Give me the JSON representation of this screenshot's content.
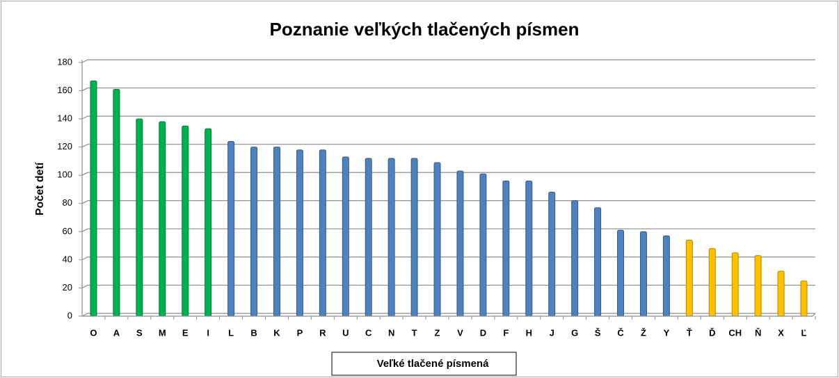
{
  "chart_data": {
    "type": "bar",
    "title": "Poznanie veľkých tlačených písmen",
    "ylabel": "Počet detí",
    "xlabel": "Veľké tlačené písmená",
    "categories": [
      "O",
      "A",
      "S",
      "M",
      "E",
      "I",
      "L",
      "B",
      "K",
      "P",
      "R",
      "U",
      "C",
      "N",
      "T",
      "Z",
      "V",
      "D",
      "F",
      "H",
      "J",
      "G",
      "Š",
      "Č",
      "Ž",
      "Y",
      "Ť",
      "Ď",
      "CH",
      "Ň",
      "X",
      "Ľ"
    ],
    "values": [
      167,
      161,
      140,
      138,
      135,
      133,
      124,
      120,
      120,
      118,
      118,
      113,
      112,
      112,
      112,
      109,
      103,
      101,
      96,
      96,
      88,
      82,
      77,
      61,
      60,
      57,
      54,
      48,
      45,
      43,
      32,
      25
    ],
    "colors": [
      "#00b050",
      "#00b050",
      "#00b050",
      "#00b050",
      "#00b050",
      "#00b050",
      "#4f81bd",
      "#4f81bd",
      "#4f81bd",
      "#4f81bd",
      "#4f81bd",
      "#4f81bd",
      "#4f81bd",
      "#4f81bd",
      "#4f81bd",
      "#4f81bd",
      "#4f81bd",
      "#4f81bd",
      "#4f81bd",
      "#4f81bd",
      "#4f81bd",
      "#4f81bd",
      "#4f81bd",
      "#4f81bd",
      "#4f81bd",
      "#4f81bd",
      "#ffc000",
      "#ffc000",
      "#ffc000",
      "#ffc000",
      "#ffc000",
      "#ffc000"
    ],
    "ylim": [
      0,
      180
    ],
    "yticks": [
      0,
      20,
      40,
      60,
      80,
      100,
      120,
      140,
      160,
      180
    ],
    "grid": true
  }
}
